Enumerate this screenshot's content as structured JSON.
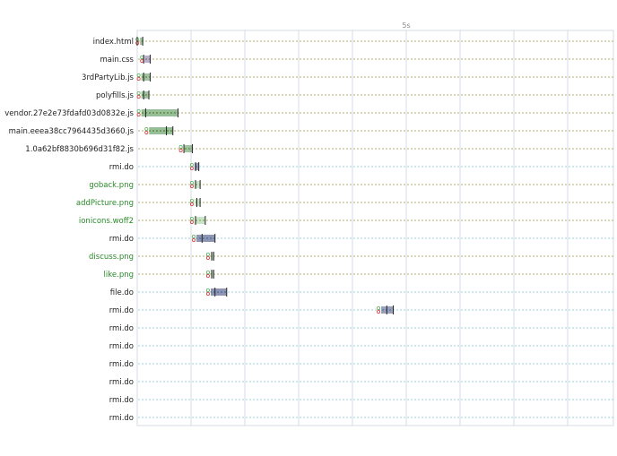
{
  "chart_data": {
    "type": "waterfall",
    "x_unit": "s",
    "x_range": [
      0,
      9.4
    ],
    "grid": true,
    "tick_labels": [
      {
        "t": 5,
        "label": "5s"
      }
    ],
    "requests": [
      {
        "name": "index.html",
        "type": "document",
        "start": 0.03,
        "wait": 0.0,
        "end": 0.06
      },
      {
        "name": "main.css",
        "type": "document",
        "start": 0.1,
        "wait": 0.1,
        "end": 0.2
      },
      {
        "name": "3rdPartyLib.js",
        "type": "script",
        "start": 0.05,
        "wait": 0.1,
        "end": 0.2
      },
      {
        "name": "polyfills.js",
        "type": "script",
        "start": 0.05,
        "wait": 0.1,
        "end": 0.18
      },
      {
        "name": "vendor.27e2e73fdafd03d0832e.js",
        "type": "script",
        "start": 0.05,
        "wait": 0.13,
        "end": 0.63
      },
      {
        "name": "main.eeea38cc7964435d3660.js",
        "type": "script",
        "start": 0.17,
        "wait": 0.45,
        "end": 0.55
      },
      {
        "name": "1.0a62bf8830b696d31f82.js",
        "type": "script",
        "start": 0.7,
        "wait": 0.72,
        "end": 0.85
      },
      {
        "name": "rmi.do",
        "type": "xhr",
        "start": 0.87,
        "wait": 0.9,
        "end": 0.95
      },
      {
        "name": "goback.png",
        "type": "image",
        "start": 0.87,
        "wait": 0.9,
        "end": 0.97
      },
      {
        "name": "addPicture.png",
        "type": "image",
        "start": 0.87,
        "wait": 0.92,
        "end": 0.97
      },
      {
        "name": "ionicons.woff2",
        "type": "image",
        "start": 0.87,
        "wait": 0.9,
        "end": 1.05
      },
      {
        "name": "rmi.do",
        "type": "xhr",
        "start": 0.9,
        "wait": 1.0,
        "end": 1.2
      },
      {
        "name": "discuss.png",
        "type": "image",
        "start": 1.12,
        "wait": 1.15,
        "end": 1.18
      },
      {
        "name": "like.png",
        "type": "image",
        "start": 1.12,
        "wait": 1.15,
        "end": 1.18
      },
      {
        "name": "file.do",
        "type": "xhr",
        "start": 1.12,
        "wait": 1.2,
        "end": 1.38
      },
      {
        "name": "rmi.do",
        "type": "xhr",
        "start": 3.75,
        "wait": 3.85,
        "end": 3.95
      },
      {
        "name": "rmi.do",
        "type": "xhr",
        "start": null,
        "wait": null,
        "end": null
      },
      {
        "name": "rmi.do",
        "type": "xhr",
        "start": null,
        "wait": null,
        "end": null
      },
      {
        "name": "rmi.do",
        "type": "xhr",
        "start": null,
        "wait": null,
        "end": null
      },
      {
        "name": "rmi.do",
        "type": "xhr",
        "start": null,
        "wait": null,
        "end": null
      },
      {
        "name": "rmi.do",
        "type": "xhr",
        "start": null,
        "wait": null,
        "end": null
      },
      {
        "name": "rmi.do",
        "type": "xhr",
        "start": null,
        "wait": null,
        "end": null
      }
    ],
    "colors": {
      "label_default": "#222222",
      "label_image": "#2a8a2a",
      "grid": "#d4dbe6",
      "tick": "#8a8a8a",
      "guide_resource": "#9a9a4a",
      "guide_xhr": "#7ec3dc",
      "bar_green": "#2e7d32",
      "bar_green_light": "#8bc58b",
      "bar_purple": "#6a4a9a",
      "bar_navy": "#1e2a66",
      "marker_red": "#d63a3a",
      "marker_green": "#5fae5f"
    }
  }
}
